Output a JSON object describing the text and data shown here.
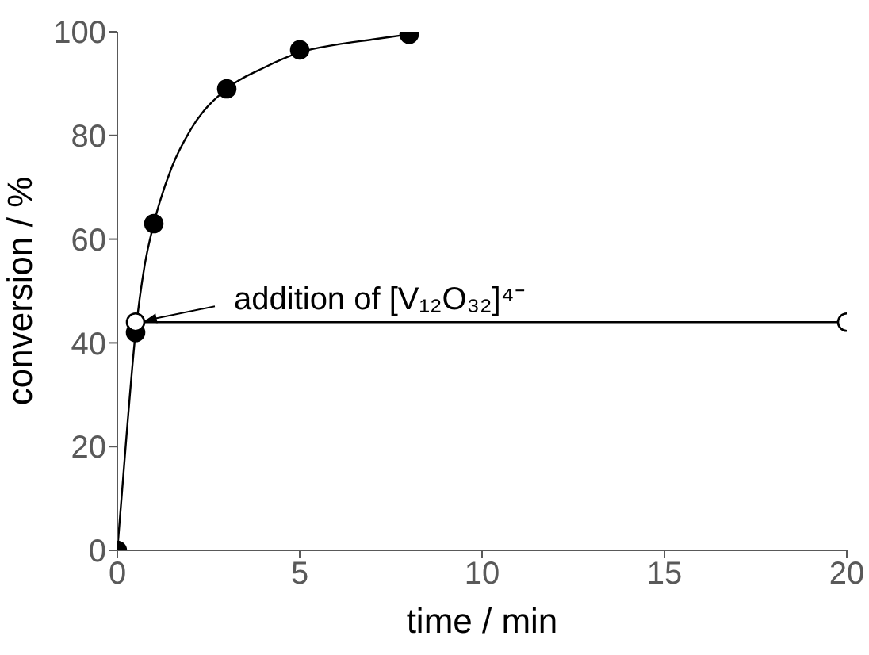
{
  "chart_data": {
    "type": "scatter",
    "xlabel": "time / min",
    "ylabel": "conversion / %",
    "xlim": [
      0,
      20
    ],
    "xticks": [
      0,
      5,
      10,
      15,
      20
    ],
    "ylim": [
      0,
      100
    ],
    "yticks": [
      0,
      20,
      40,
      60,
      80,
      100
    ],
    "grid": false,
    "marker": "circle",
    "line_style": "solid",
    "series": [
      {
        "type": "line",
        "marker": "none",
        "color": "#000000",
        "x": [
          0,
          0.25,
          0.5,
          0.75,
          1,
          1.5,
          2,
          3,
          4,
          5,
          6,
          7,
          8
        ],
        "values": [
          0,
          22,
          42,
          55,
          63,
          74,
          81,
          89,
          93,
          96,
          97.5,
          98.5,
          99.5
        ]
      },
      {
        "color": "#000000",
        "x": [
          0,
          0.5,
          1,
          3,
          5,
          8
        ],
        "values": [
          0,
          42,
          63,
          89,
          96.5,
          99.5
        ]
      },
      {
        "type": "line",
        "marker": "circle",
        "color": "#000000",
        "x": [
          0.5,
          20
        ],
        "values": [
          44,
          44
        ]
      }
    ],
    "annotations": [
      {
        "text": "addition of [V₁₂O₃₂]⁴⁻",
        "x": 0.5,
        "y": 44
      }
    ]
  }
}
